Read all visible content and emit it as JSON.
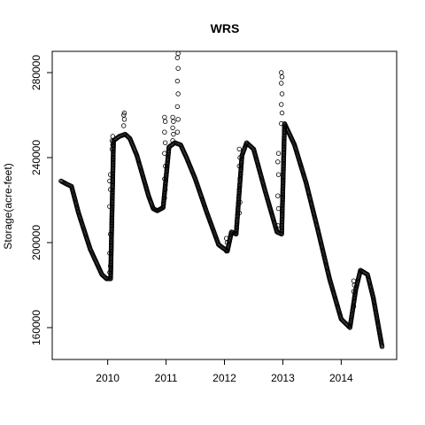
{
  "chart_data": {
    "type": "scatter",
    "title": "WRS",
    "xlabel": "",
    "ylabel": "Storage(acre-feet)",
    "xlim": [
      2009.05,
      2014.95
    ],
    "ylim": [
      145000,
      290000
    ],
    "x_ticks": [
      2010,
      2011,
      2012,
      2013,
      2014
    ],
    "x_tick_labels": [
      "2010",
      "2011",
      "2012",
      "2013",
      "2014"
    ],
    "y_ticks": [
      160000,
      200000,
      240000,
      280000
    ],
    "y_tick_labels": [
      "160000",
      "200000",
      "240000",
      "280000"
    ],
    "grid": false,
    "legend": "none",
    "marker": "open-circle",
    "trend_x": [
      2009.2,
      2009.3,
      2009.38,
      2009.5,
      2009.7,
      2009.9,
      2009.98,
      2010.05,
      2010.1,
      2010.2,
      2010.3,
      2010.38,
      2010.5,
      2010.7,
      2010.78,
      2010.85,
      2010.95,
      2011.05,
      2011.15,
      2011.25,
      2011.35,
      2011.5,
      2011.7,
      2011.9,
      2012.05,
      2012.12,
      2012.2,
      2012.3,
      2012.38,
      2012.5,
      2012.7,
      2012.9,
      2012.98,
      2013.03,
      2013.2,
      2013.4,
      2013.6,
      2013.8,
      2014.0,
      2014.15,
      2014.25,
      2014.33,
      2014.45,
      2014.55,
      2014.7
    ],
    "trend_y": [
      229000,
      227500,
      226500,
      214000,
      197000,
      185000,
      183000,
      183000,
      248000,
      250000,
      251000,
      249000,
      241000,
      222000,
      216000,
      215000,
      216500,
      245000,
      247000,
      246000,
      240000,
      230000,
      214000,
      199000,
      196000,
      205000,
      204000,
      241000,
      247000,
      244000,
      224000,
      205000,
      204000,
      256000,
      246000,
      228000,
      206000,
      183000,
      164000,
      160000,
      178000,
      187000,
      185000,
      174000,
      151000
    ],
    "spikes": [
      {
        "x": 2010.04,
        "values": [
          186000,
          189000,
          195000,
          204000,
          217000,
          225000,
          229000,
          232000
        ]
      },
      {
        "x": 2010.08,
        "values": [
          244000,
          246000,
          248000,
          250000
        ]
      },
      {
        "x": 2010.28,
        "values": [
          255000,
          258000,
          260000,
          261000
        ]
      },
      {
        "x": 2010.98,
        "values": [
          221000,
          225000,
          230000,
          236000,
          242000,
          247000,
          252000,
          257000,
          259000
        ]
      },
      {
        "x": 2011.12,
        "values": [
          248000,
          251000,
          254000,
          257000,
          259000
        ]
      },
      {
        "x": 2011.2,
        "values": [
          252000,
          258000,
          264000,
          270000,
          276000,
          282000,
          287000,
          289000
        ]
      },
      {
        "x": 2012.04,
        "values": [
          196000,
          200000,
          202000
        ]
      },
      {
        "x": 2012.26,
        "values": [
          214000,
          219000,
          225000,
          230000,
          236000,
          240000,
          244000
        ]
      },
      {
        "x": 2012.92,
        "values": [
          208000,
          216000,
          222000,
          232000,
          238000,
          242000
        ]
      },
      {
        "x": 2012.98,
        "values": [
          256000,
          261000,
          265000,
          270000,
          275000,
          278000,
          280000
        ]
      },
      {
        "x": 2014.22,
        "values": [
          170000,
          174000,
          177000,
          180000,
          182000
        ]
      }
    ]
  }
}
